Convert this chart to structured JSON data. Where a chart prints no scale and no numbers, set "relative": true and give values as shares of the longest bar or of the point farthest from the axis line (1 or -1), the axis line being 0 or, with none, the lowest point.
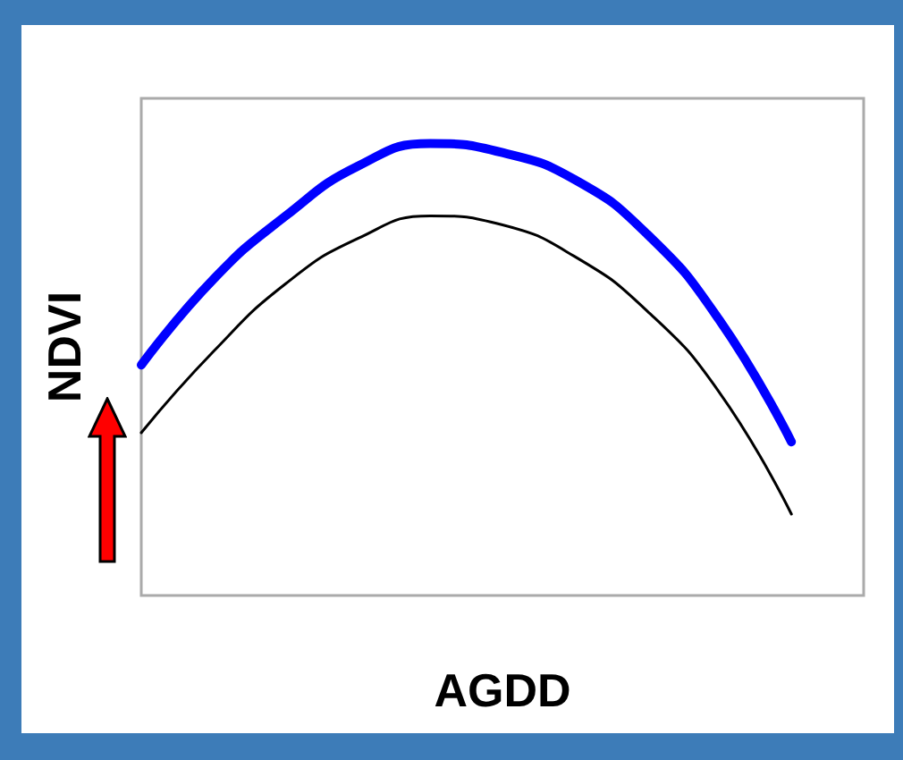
{
  "chart_data": {
    "type": "line",
    "xlabel": "AGDD",
    "ylabel": "NDVI",
    "relative": true,
    "categories": [
      null,
      null,
      null,
      null,
      null,
      null,
      null,
      null,
      null,
      null,
      null
    ],
    "series": [
      {
        "color": "#0000ff",
        "values": [
          0.51,
          0.7,
          0.84,
          0.95,
          1,
          0.98,
          0.92,
          0.8,
          0.61,
          0.34,
          null
        ]
      },
      {
        "color": "#000000",
        "values": [
          0.36,
          0.54,
          0.69,
          0.79,
          0.84,
          0.82,
          0.75,
          0.63,
          0.45,
          0.18,
          null
        ]
      }
    ],
    "marker": "none",
    "line_style": "solid",
    "grid": false
  }
}
